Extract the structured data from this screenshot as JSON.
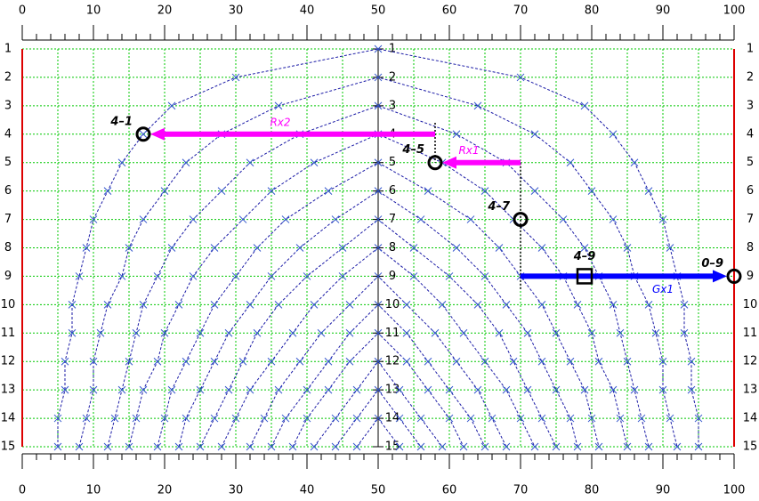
{
  "chart_data": {
    "type": "line",
    "xlim": [
      0,
      100
    ],
    "ylim": [
      15,
      1
    ],
    "xticks": [
      0,
      10,
      20,
      30,
      40,
      50,
      60,
      70,
      80,
      90,
      100
    ],
    "x_minor_ticks": [
      0,
      2,
      4,
      6,
      8,
      10,
      12,
      14,
      16,
      18,
      20,
      22,
      24,
      26,
      28,
      30,
      32,
      34,
      36,
      38,
      40,
      42,
      44,
      46,
      48,
      50,
      52,
      54,
      56,
      58,
      60,
      62,
      64,
      66,
      68,
      70,
      72,
      74,
      76,
      78,
      80,
      82,
      84,
      86,
      88,
      90,
      92,
      94,
      96,
      98,
      100
    ],
    "x_grid": [
      0,
      5,
      10,
      15,
      20,
      25,
      30,
      35,
      40,
      45,
      50,
      55,
      60,
      65,
      70,
      75,
      80,
      85,
      90,
      95,
      100
    ],
    "yticks": [
      1,
      2,
      3,
      4,
      5,
      6,
      7,
      8,
      9,
      10,
      11,
      12,
      13,
      14,
      15
    ],
    "grid": true,
    "grid_color": "#00c800",
    "line_color": "#1a1aa6",
    "marker_color": "#3355cc",
    "border_color": "#dd0000",
    "center_axis": 50,
    "series": [
      {
        "x": [
          5,
          5,
          6,
          6,
          7,
          7,
          8,
          9,
          10,
          12,
          14,
          17,
          21,
          30,
          50,
          70,
          79,
          83,
          86,
          88,
          90,
          91,
          92,
          93,
          93,
          94,
          94,
          95,
          95
        ],
        "y": [
          15,
          14,
          13,
          12,
          11,
          10,
          9,
          8,
          7,
          6,
          5,
          4,
          3,
          2,
          1,
          2,
          3,
          4,
          5,
          6,
          7,
          8,
          9,
          10,
          11,
          12,
          13,
          14,
          15
        ]
      },
      {
        "x": [
          8,
          9,
          10,
          10,
          11,
          12,
          14,
          15,
          17,
          20,
          23,
          28,
          36,
          50,
          64,
          72,
          77,
          80,
          83,
          85,
          86,
          88,
          89,
          90,
          90,
          91,
          92
        ],
        "y": [
          15,
          14,
          13,
          12,
          11,
          10,
          9,
          8,
          7,
          6,
          5,
          4,
          3,
          2,
          3,
          4,
          5,
          6,
          7,
          8,
          9,
          10,
          11,
          12,
          13,
          14,
          15
        ]
      },
      {
        "x": [
          12,
          13,
          14,
          15,
          16,
          17,
          19,
          21,
          24,
          28,
          32,
          39,
          50,
          61,
          68,
          72,
          76,
          79,
          81,
          83,
          84,
          85,
          86,
          87,
          88
        ],
        "y": [
          15,
          14,
          13,
          12,
          11,
          10,
          9,
          8,
          7,
          6,
          5,
          4,
          3,
          4,
          5,
          6,
          7,
          8,
          9,
          10,
          11,
          12,
          13,
          14,
          15
        ]
      },
      {
        "x": [
          15,
          16,
          17,
          19,
          20,
          22,
          24,
          27,
          31,
          35,
          41,
          50,
          59,
          65,
          69,
          73,
          76,
          78,
          80,
          81,
          83,
          84,
          85
        ],
        "y": [
          15,
          14,
          13,
          12,
          11,
          10,
          9,
          8,
          7,
          6,
          5,
          4,
          5,
          6,
          7,
          8,
          9,
          10,
          11,
          12,
          13,
          14,
          15
        ]
      },
      {
        "x": [
          19,
          20,
          21,
          23,
          25,
          27,
          30,
          33,
          37,
          43,
          50,
          57,
          63,
          67,
          70,
          73,
          75,
          77,
          79,
          80,
          81
        ],
        "y": [
          15,
          14,
          13,
          12,
          11,
          10,
          9,
          8,
          7,
          6,
          5,
          6,
          7,
          8,
          9,
          10,
          11,
          12,
          13,
          14,
          15
        ]
      },
      {
        "x": [
          22,
          23,
          25,
          27,
          29,
          32,
          35,
          39,
          44,
          50,
          56,
          61,
          65,
          68,
          71,
          73,
          75,
          77,
          78
        ],
        "y": [
          15,
          14,
          13,
          12,
          11,
          10,
          9,
          8,
          7,
          6,
          7,
          8,
          9,
          10,
          11,
          12,
          13,
          14,
          15
        ]
      },
      {
        "x": [
          25,
          27,
          29,
          31,
          33,
          36,
          40,
          45,
          50,
          55,
          60,
          64,
          67,
          69,
          71,
          73,
          75
        ],
        "y": [
          15,
          14,
          13,
          12,
          11,
          10,
          9,
          8,
          7,
          8,
          9,
          10,
          11,
          12,
          13,
          14,
          15
        ]
      },
      {
        "x": [
          28,
          30,
          32,
          35,
          38,
          41,
          45,
          50,
          55,
          59,
          62,
          65,
          68,
          70,
          72
        ],
        "y": [
          15,
          14,
          13,
          12,
          11,
          10,
          9,
          8,
          9,
          10,
          11,
          12,
          13,
          14,
          15
        ]
      },
      {
        "x": [
          32,
          34,
          36,
          39,
          42,
          46,
          50,
          54,
          58,
          61,
          64,
          66,
          68
        ],
        "y": [
          15,
          14,
          13,
          12,
          11,
          10,
          9,
          10,
          11,
          12,
          13,
          14,
          15
        ]
      },
      {
        "x": [
          35,
          37,
          40,
          43,
          46,
          50,
          54,
          57,
          60,
          63,
          65
        ],
        "y": [
          15,
          14,
          13,
          12,
          11,
          10,
          11,
          12,
          13,
          14,
          15
        ]
      },
      {
        "x": [
          38,
          40,
          43,
          46,
          50,
          54,
          57,
          60,
          62
        ],
        "y": [
          15,
          14,
          13,
          12,
          11,
          12,
          13,
          14,
          15
        ]
      },
      {
        "x": [
          41,
          44,
          47,
          50,
          53,
          56,
          59
        ],
        "y": [
          15,
          14,
          13,
          12,
          13,
          14,
          15
        ]
      },
      {
        "x": [
          44,
          47,
          50,
          53,
          56
        ],
        "y": [
          15,
          14,
          13,
          14,
          15
        ]
      },
      {
        "x": [
          47,
          50,
          53
        ],
        "y": [
          15,
          14,
          15
        ]
      }
    ],
    "points": [
      {
        "label": "4–1",
        "x": 17,
        "y": 4,
        "shape": "circle"
      },
      {
        "label": "4–5",
        "x": 58,
        "y": 5,
        "shape": "circle"
      },
      {
        "label": "4–7",
        "x": 70,
        "y": 7,
        "shape": "circle"
      },
      {
        "label": "4–9",
        "x": 79,
        "y": 9,
        "shape": "square"
      },
      {
        "label": "0–9",
        "x": 100,
        "y": 9,
        "shape": "circle"
      }
    ],
    "arrows": [
      {
        "label": "Rx2",
        "x": [
          58,
          17
        ],
        "y": 4,
        "color": "#ff00ff"
      },
      {
        "label": "Rx1",
        "x": [
          70,
          58
        ],
        "y": 5,
        "color": "#ff00ff"
      },
      {
        "label": "Gx1",
        "x": [
          70,
          100
        ],
        "y": 9,
        "color": "#0000ff"
      }
    ],
    "guides": [
      {
        "x": 58,
        "y": [
          3.6,
          5
        ]
      },
      {
        "x": 70,
        "y": [
          5,
          9.5
        ]
      }
    ]
  }
}
